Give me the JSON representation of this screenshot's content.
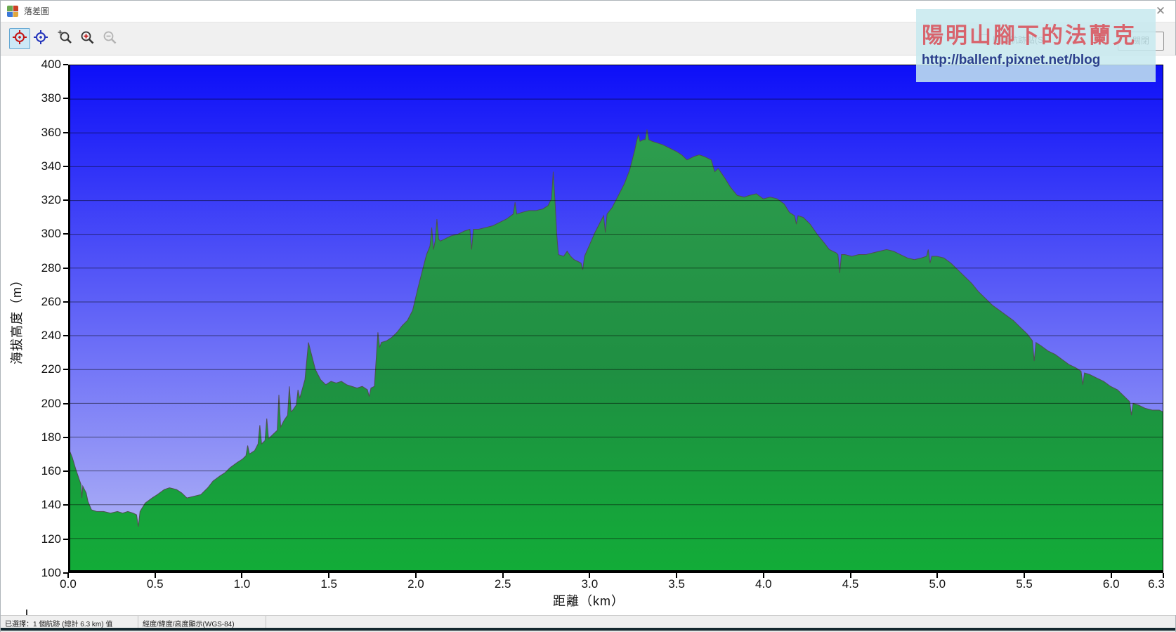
{
  "window": {
    "title": "落差圖",
    "close_label": "✕"
  },
  "toolbar": {
    "buttons": [
      {
        "name": "track-cursor-red",
        "selected": true,
        "disabled": false
      },
      {
        "name": "track-cursor-blue",
        "selected": false,
        "disabled": false
      },
      {
        "name": "zoom-region",
        "selected": false,
        "disabled": false
      },
      {
        "name": "zoom-in",
        "selected": false,
        "disabled": false
      },
      {
        "name": "zoom-out",
        "selected": false,
        "disabled": true
      }
    ],
    "show_trackpoints_label": "顯示航跡點(S)",
    "show_trackpoints_checked": false,
    "close_button_label": "關閉"
  },
  "watermark": {
    "title": "陽明山腳下的法蘭克",
    "url": "http://ballenf.pixnet.net/blog",
    "bg": "#c7e9ef",
    "title_color": "#d85d65",
    "url_color": "#2b3f8c"
  },
  "chart_data": {
    "type": "area",
    "title": "",
    "xlabel": "距離（km）",
    "ylabel": "海拔高度（m）",
    "xlim": [
      0,
      6.3
    ],
    "ylim": [
      100,
      400
    ],
    "grid": true,
    "legend": "none",
    "x_ticks": [
      0,
      0.5,
      1,
      1.5,
      2,
      2.5,
      3,
      3.5,
      4,
      4.5,
      5,
      5.5,
      6,
      6.3
    ],
    "x_tick_labels": [
      "0.0",
      "0.5",
      "1.0",
      "1.5",
      "2.0",
      "2.5",
      "3.0",
      "3.5",
      "4.0",
      "4.5",
      "5.0",
      "5.5",
      "6.0",
      "6.3"
    ],
    "y_ticks": [
      100,
      120,
      140,
      160,
      180,
      200,
      220,
      240,
      260,
      280,
      300,
      320,
      340,
      360,
      380,
      400
    ],
    "colors": {
      "bg_top": "#0d0ff8",
      "bg_bottom": "#b9bcf6",
      "fill_top": "#2e9d4e",
      "fill_mid": "#1f8f42",
      "fill_bottom": "#12ac38",
      "line": "#4f4f4f",
      "grid": "rgba(0,0,0,0.5)",
      "axis": "#000000"
    },
    "points": [
      [
        0,
        173
      ],
      [
        0.02,
        168
      ],
      [
        0.04,
        161
      ],
      [
        0.06,
        155
      ],
      [
        0.07,
        152
      ],
      [
        0.075,
        144
      ],
      [
        0.08,
        151
      ],
      [
        0.1,
        147
      ],
      [
        0.11,
        142
      ],
      [
        0.13,
        137
      ],
      [
        0.16,
        136
      ],
      [
        0.2,
        136
      ],
      [
        0.24,
        135
      ],
      [
        0.28,
        136
      ],
      [
        0.31,
        135
      ],
      [
        0.34,
        136
      ],
      [
        0.37,
        135
      ],
      [
        0.39,
        134
      ],
      [
        0.4,
        127
      ],
      [
        0.41,
        136
      ],
      [
        0.44,
        141
      ],
      [
        0.48,
        144
      ],
      [
        0.51,
        146
      ],
      [
        0.55,
        149
      ],
      [
        0.58,
        150
      ],
      [
        0.62,
        149
      ],
      [
        0.65,
        147
      ],
      [
        0.68,
        144
      ],
      [
        0.72,
        145
      ],
      [
        0.76,
        146
      ],
      [
        0.8,
        150
      ],
      [
        0.83,
        154
      ],
      [
        0.87,
        157
      ],
      [
        0.9,
        159
      ],
      [
        0.93,
        162
      ],
      [
        0.97,
        165
      ],
      [
        1,
        167
      ],
      [
        1.02,
        169
      ],
      [
        1.03,
        175
      ],
      [
        1.04,
        170
      ],
      [
        1.07,
        172
      ],
      [
        1.09,
        176
      ],
      [
        1.1,
        187
      ],
      [
        1.11,
        176
      ],
      [
        1.13,
        178
      ],
      [
        1.14,
        191
      ],
      [
        1.15,
        179
      ],
      [
        1.17,
        181
      ],
      [
        1.2,
        184
      ],
      [
        1.21,
        205
      ],
      [
        1.22,
        186
      ],
      [
        1.24,
        190
      ],
      [
        1.26,
        193
      ],
      [
        1.27,
        210
      ],
      [
        1.28,
        195
      ],
      [
        1.29,
        196
      ],
      [
        1.31,
        199
      ],
      [
        1.32,
        208
      ],
      [
        1.33,
        203
      ],
      [
        1.36,
        214
      ],
      [
        1.38,
        236
      ],
      [
        1.4,
        228
      ],
      [
        1.42,
        220
      ],
      [
        1.45,
        214
      ],
      [
        1.48,
        211
      ],
      [
        1.51,
        213
      ],
      [
        1.54,
        212
      ],
      [
        1.57,
        213
      ],
      [
        1.6,
        211
      ],
      [
        1.63,
        210
      ],
      [
        1.66,
        209
      ],
      [
        1.69,
        210
      ],
      [
        1.72,
        208
      ],
      [
        1.73,
        204
      ],
      [
        1.74,
        209
      ],
      [
        1.76,
        210
      ],
      [
        1.77,
        226
      ],
      [
        1.78,
        242
      ],
      [
        1.79,
        233
      ],
      [
        1.8,
        236
      ],
      [
        1.83,
        237
      ],
      [
        1.86,
        239
      ],
      [
        1.89,
        242
      ],
      [
        1.92,
        246
      ],
      [
        1.95,
        249
      ],
      [
        1.98,
        255
      ],
      [
        2.01,
        268
      ],
      [
        2.04,
        280
      ],
      [
        2.06,
        288
      ],
      [
        2.08,
        293
      ],
      [
        2.09,
        304
      ],
      [
        2.1,
        291
      ],
      [
        2.11,
        296
      ],
      [
        2.12,
        309
      ],
      [
        2.13,
        297
      ],
      [
        2.14,
        296
      ],
      [
        2.16,
        297
      ],
      [
        2.2,
        299
      ],
      [
        2.24,
        300
      ],
      [
        2.28,
        302
      ],
      [
        2.31,
        303
      ],
      [
        2.32,
        291
      ],
      [
        2.33,
        303
      ],
      [
        2.36,
        303
      ],
      [
        2.4,
        304
      ],
      [
        2.44,
        305
      ],
      [
        2.48,
        307
      ],
      [
        2.52,
        309
      ],
      [
        2.56,
        312
      ],
      [
        2.57,
        319
      ],
      [
        2.58,
        312
      ],
      [
        2.61,
        313
      ],
      [
        2.65,
        314
      ],
      [
        2.69,
        314
      ],
      [
        2.73,
        315
      ],
      [
        2.76,
        317
      ],
      [
        2.78,
        321
      ],
      [
        2.79,
        337
      ],
      [
        2.8,
        320
      ],
      [
        2.81,
        300
      ],
      [
        2.82,
        288
      ],
      [
        2.85,
        287
      ],
      [
        2.87,
        290
      ],
      [
        2.89,
        287
      ],
      [
        2.91,
        285
      ],
      [
        2.93,
        284
      ],
      [
        2.95,
        283
      ],
      [
        2.96,
        279
      ],
      [
        2.97,
        287
      ],
      [
        3,
        294
      ],
      [
        3.03,
        301
      ],
      [
        3.06,
        307
      ],
      [
        3.08,
        311
      ],
      [
        3.09,
        301
      ],
      [
        3.1,
        312
      ],
      [
        3.13,
        316
      ],
      [
        3.16,
        322
      ],
      [
        3.2,
        330
      ],
      [
        3.23,
        338
      ],
      [
        3.26,
        350
      ],
      [
        3.27,
        355
      ],
      [
        3.28,
        359
      ],
      [
        3.29,
        355
      ],
      [
        3.31,
        356
      ],
      [
        3.32,
        356
      ],
      [
        3.33,
        362
      ],
      [
        3.34,
        356
      ],
      [
        3.36,
        355
      ],
      [
        3.39,
        354
      ],
      [
        3.42,
        353
      ],
      [
        3.46,
        351
      ],
      [
        3.5,
        349
      ],
      [
        3.53,
        347
      ],
      [
        3.56,
        344
      ],
      [
        3.6,
        346
      ],
      [
        3.63,
        347
      ],
      [
        3.66,
        346
      ],
      [
        3.7,
        344
      ],
      [
        3.72,
        337
      ],
      [
        3.74,
        339
      ],
      [
        3.78,
        333
      ],
      [
        3.81,
        328
      ],
      [
        3.85,
        323
      ],
      [
        3.89,
        322
      ],
      [
        3.92,
        323
      ],
      [
        3.96,
        324
      ],
      [
        4,
        321
      ],
      [
        4.04,
        322
      ],
      [
        4.08,
        321
      ],
      [
        4.12,
        318
      ],
      [
        4.15,
        313
      ],
      [
        4.18,
        311
      ],
      [
        4.19,
        306
      ],
      [
        4.2,
        311
      ],
      [
        4.23,
        310
      ],
      [
        4.27,
        306
      ],
      [
        4.31,
        300
      ],
      [
        4.35,
        295
      ],
      [
        4.38,
        291
      ],
      [
        4.42,
        289
      ],
      [
        4.43,
        288
      ],
      [
        4.44,
        277
      ],
      [
        4.45,
        288
      ],
      [
        4.47,
        288
      ],
      [
        4.51,
        287
      ],
      [
        4.55,
        288
      ],
      [
        4.59,
        288
      ],
      [
        4.63,
        289
      ],
      [
        4.67,
        290
      ],
      [
        4.71,
        291
      ],
      [
        4.75,
        290
      ],
      [
        4.79,
        288
      ],
      [
        4.83,
        286
      ],
      [
        4.87,
        285
      ],
      [
        4.91,
        286
      ],
      [
        4.94,
        287
      ],
      [
        4.95,
        291
      ],
      [
        4.96,
        283
      ],
      [
        4.97,
        287
      ],
      [
        5,
        287
      ],
      [
        5.04,
        286
      ],
      [
        5.08,
        283
      ],
      [
        5.12,
        279
      ],
      [
        5.16,
        275
      ],
      [
        5.2,
        271
      ],
      [
        5.24,
        266
      ],
      [
        5.28,
        262
      ],
      [
        5.32,
        258
      ],
      [
        5.36,
        255
      ],
      [
        5.4,
        252
      ],
      [
        5.44,
        249
      ],
      [
        5.48,
        245
      ],
      [
        5.52,
        241
      ],
      [
        5.55,
        237
      ],
      [
        5.56,
        225
      ],
      [
        5.57,
        236
      ],
      [
        5.6,
        234
      ],
      [
        5.64,
        231
      ],
      [
        5.68,
        229
      ],
      [
        5.72,
        226
      ],
      [
        5.76,
        223
      ],
      [
        5.8,
        221
      ],
      [
        5.83,
        219
      ],
      [
        5.84,
        211
      ],
      [
        5.85,
        218
      ],
      [
        5.88,
        217
      ],
      [
        5.92,
        215
      ],
      [
        5.96,
        213
      ],
      [
        6,
        210
      ],
      [
        6.04,
        208
      ],
      [
        6.08,
        204
      ],
      [
        6.11,
        201
      ],
      [
        6.12,
        193
      ],
      [
        6.13,
        200
      ],
      [
        6.16,
        199
      ],
      [
        6.2,
        197
      ],
      [
        6.24,
        196
      ],
      [
        6.28,
        196
      ],
      [
        6.3,
        195
      ]
    ]
  },
  "status_bar": {
    "segments": [
      "已選擇：1 個航跡 (總計 6.3 km) 值",
      "經度/緯度/高度顯示(WGS-84)"
    ]
  }
}
